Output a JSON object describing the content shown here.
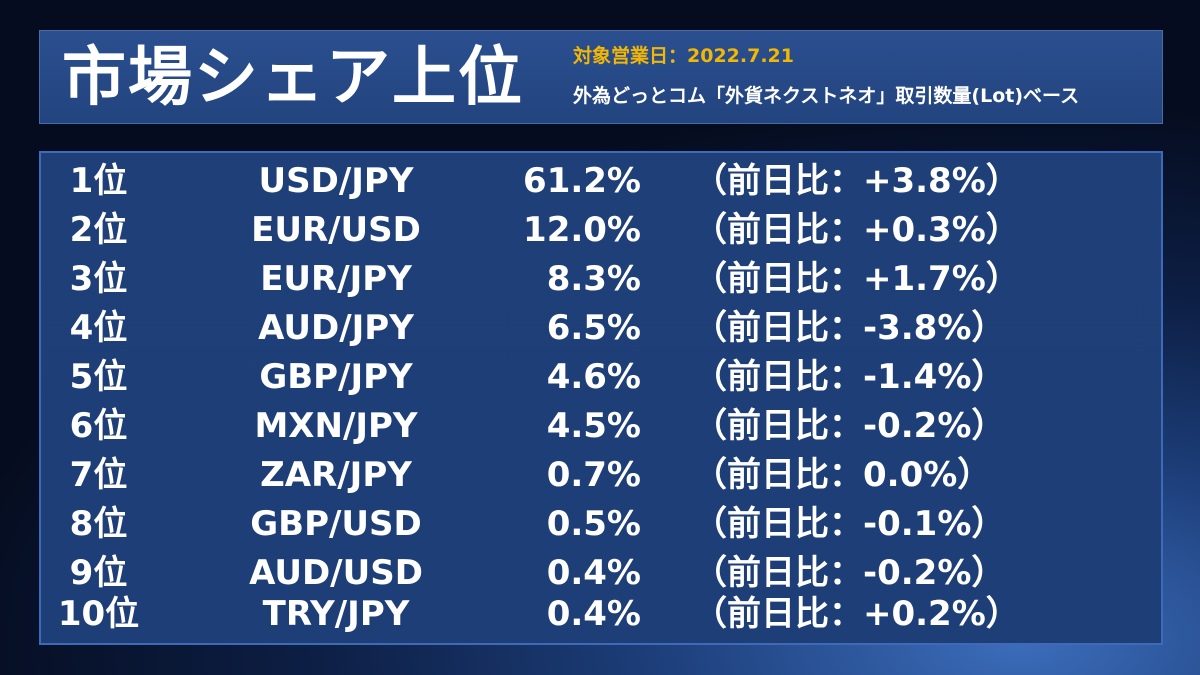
{
  "header": {
    "title": "市場シェア上位",
    "date_label": "対象営業日：2022.7.21",
    "description": "外為どっとコム「外貨ネクストネオ」取引数量(Lot)ベース"
  },
  "rows": [
    {
      "rank": "1位",
      "pair": "USD/JPY",
      "share": "61.2%",
      "change": "（前日比：+3.8%）"
    },
    {
      "rank": "2位",
      "pair": "EUR/USD",
      "share": "12.0%",
      "change": "（前日比：+0.3%）"
    },
    {
      "rank": "3位",
      "pair": "EUR/JPY",
      "share": "8.3%",
      "change": "（前日比：+1.7%）"
    },
    {
      "rank": "4位",
      "pair": "AUD/JPY",
      "share": "6.5%",
      "change": "（前日比：-3.8%）"
    },
    {
      "rank": "5位",
      "pair": "GBP/JPY",
      "share": "4.6%",
      "change": "（前日比：-1.4%）"
    },
    {
      "rank": "6位",
      "pair": "MXN/JPY",
      "share": "4.5%",
      "change": "（前日比：-0.2%）"
    },
    {
      "rank": "7位",
      "pair": "ZAR/JPY",
      "share": "0.7%",
      "change": "（前日比：0.0%）"
    },
    {
      "rank": "8位",
      "pair": "GBP/USD",
      "share": "0.5%",
      "change": "（前日比：-0.1%）"
    },
    {
      "rank": "9位",
      "pair": "AUD/USD",
      "share": "0.4%",
      "change": "（前日比：-0.2%）"
    },
    {
      "rank": "10位",
      "pair": "TRY/JPY",
      "share": "0.4%",
      "change": "（前日比：+0.2%）"
    }
  ],
  "colors": {
    "accent": "#f2b705",
    "panel": "#1f3f78",
    "text": "#ffffff"
  }
}
